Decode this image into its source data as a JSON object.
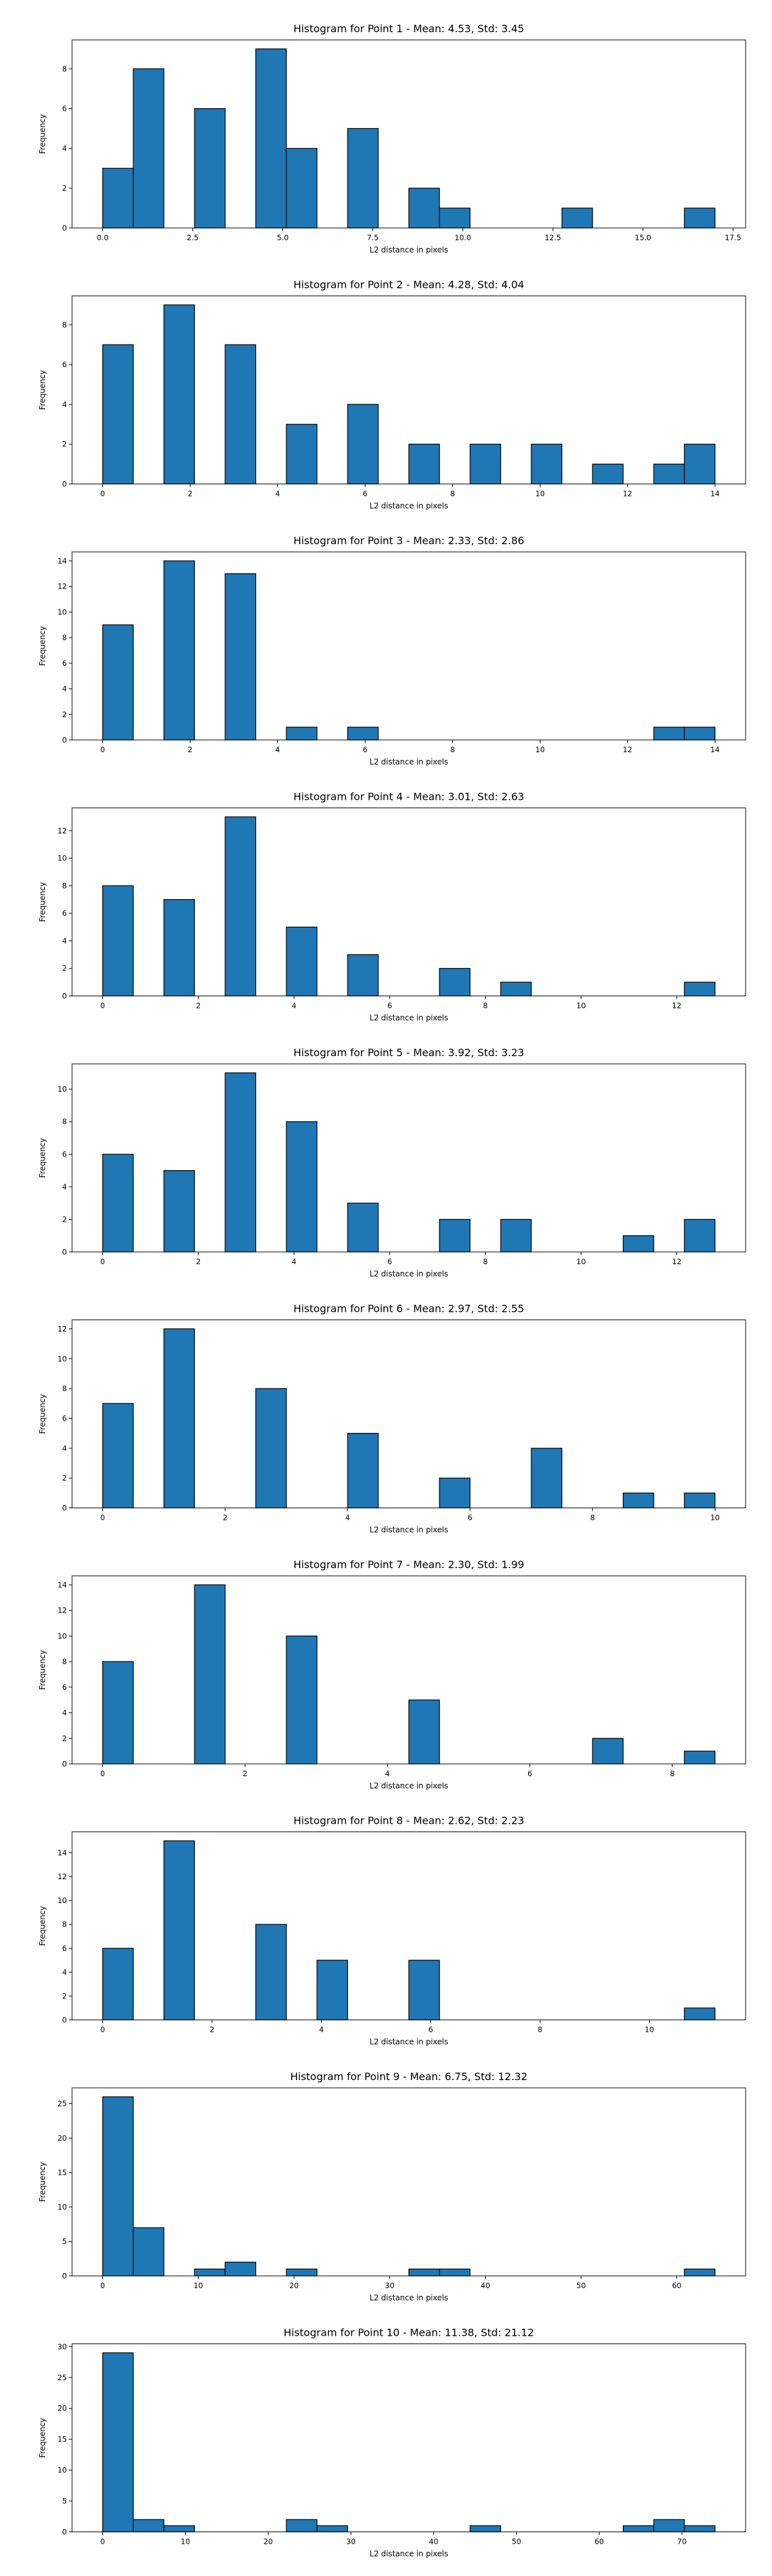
{
  "chart_data": [
    {
      "type": "bar",
      "title": "Histogram for Point 1 - Mean: 4.53, Std: 3.45",
      "xlabel": "L2 distance in pixels",
      "ylabel": "Frequency",
      "xlim": [
        -0.85,
        17.85
      ],
      "ylim": [
        0,
        9.45
      ],
      "xticks": [
        0.0,
        2.5,
        5.0,
        7.5,
        10.0,
        12.5,
        15.0,
        17.5
      ],
      "xtick_labels": [
        "0.0",
        "2.5",
        "5.0",
        "7.5",
        "10.0",
        "12.5",
        "15.0",
        "17.5"
      ],
      "yticks": [
        0,
        2,
        4,
        6,
        8
      ],
      "bin_width": 0.85,
      "bins": [
        {
          "x0": 0.0,
          "count": 3
        },
        {
          "x0": 0.85,
          "count": 8
        },
        {
          "x0": 2.55,
          "count": 6
        },
        {
          "x0": 4.25,
          "count": 9
        },
        {
          "x0": 5.1,
          "count": 4
        },
        {
          "x0": 6.8,
          "count": 5
        },
        {
          "x0": 8.5,
          "count": 2
        },
        {
          "x0": 9.35,
          "count": 1
        },
        {
          "x0": 12.75,
          "count": 1
        },
        {
          "x0": 16.15,
          "count": 1
        }
      ]
    },
    {
      "type": "bar",
      "title": "Histogram for Point 2 - Mean: 4.28, Std: 4.04",
      "xlabel": "L2 distance in pixels",
      "ylabel": "Frequency",
      "xlim": [
        -0.7,
        14.7
      ],
      "ylim": [
        0,
        9.45
      ],
      "xticks": [
        0,
        2,
        4,
        6,
        8,
        10,
        12,
        14
      ],
      "xtick_labels": [
        "0",
        "2",
        "4",
        "6",
        "8",
        "10",
        "12",
        "14"
      ],
      "yticks": [
        0,
        2,
        4,
        6,
        8
      ],
      "bin_width": 0.7,
      "bins": [
        {
          "x0": 0.0,
          "count": 7
        },
        {
          "x0": 1.4,
          "count": 9
        },
        {
          "x0": 2.8,
          "count": 7
        },
        {
          "x0": 4.2,
          "count": 3
        },
        {
          "x0": 5.6,
          "count": 4
        },
        {
          "x0": 7.0,
          "count": 2
        },
        {
          "x0": 8.4,
          "count": 2
        },
        {
          "x0": 9.8,
          "count": 2
        },
        {
          "x0": 11.2,
          "count": 1
        },
        {
          "x0": 12.6,
          "count": 1
        },
        {
          "x0": 13.3,
          "count": 2
        }
      ]
    },
    {
      "type": "bar",
      "title": "Histogram for Point 3 - Mean: 2.33, Std: 2.86",
      "xlabel": "L2 distance in pixels",
      "ylabel": "Frequency",
      "xlim": [
        -0.7,
        14.7
      ],
      "ylim": [
        0,
        14.7
      ],
      "xticks": [
        0,
        2,
        4,
        6,
        8,
        10,
        12,
        14
      ],
      "xtick_labels": [
        "0",
        "2",
        "4",
        "6",
        "8",
        "10",
        "12",
        "14"
      ],
      "yticks": [
        0,
        2,
        4,
        6,
        8,
        10,
        12,
        14
      ],
      "bin_width": 0.7,
      "bins": [
        {
          "x0": 0.0,
          "count": 9
        },
        {
          "x0": 1.4,
          "count": 14
        },
        {
          "x0": 2.8,
          "count": 13
        },
        {
          "x0": 4.2,
          "count": 1
        },
        {
          "x0": 5.6,
          "count": 1
        },
        {
          "x0": 12.6,
          "count": 1
        },
        {
          "x0": 13.3,
          "count": 1
        }
      ]
    },
    {
      "type": "bar",
      "title": "Histogram for Point 4 - Mean: 3.01, Std: 2.63",
      "xlabel": "L2 distance in pixels",
      "ylabel": "Frequency",
      "xlim": [
        -0.64,
        13.44
      ],
      "ylim": [
        0,
        13.65
      ],
      "xticks": [
        0,
        2,
        4,
        6,
        8,
        10,
        12
      ],
      "xtick_labels": [
        "0",
        "2",
        "4",
        "6",
        "8",
        "10",
        "12"
      ],
      "yticks": [
        0,
        2,
        4,
        6,
        8,
        10,
        12
      ],
      "bin_width": 0.64,
      "bins": [
        {
          "x0": 0.0,
          "count": 8
        },
        {
          "x0": 1.28,
          "count": 7
        },
        {
          "x0": 2.56,
          "count": 13
        },
        {
          "x0": 3.84,
          "count": 5
        },
        {
          "x0": 5.12,
          "count": 3
        },
        {
          "x0": 7.04,
          "count": 2
        },
        {
          "x0": 8.32,
          "count": 1
        },
        {
          "x0": 12.16,
          "count": 1
        }
      ]
    },
    {
      "type": "bar",
      "title": "Histogram for Point 5 - Mean: 3.92, Std: 3.23",
      "xlabel": "L2 distance in pixels",
      "ylabel": "Frequency",
      "xlim": [
        -0.64,
        13.44
      ],
      "ylim": [
        0,
        11.55
      ],
      "xticks": [
        0,
        2,
        4,
        6,
        8,
        10,
        12
      ],
      "xtick_labels": [
        "0",
        "2",
        "4",
        "6",
        "8",
        "10",
        "12"
      ],
      "yticks": [
        0,
        2,
        4,
        6,
        8,
        10
      ],
      "bin_width": 0.64,
      "bins": [
        {
          "x0": 0.0,
          "count": 6
        },
        {
          "x0": 1.28,
          "count": 5
        },
        {
          "x0": 2.56,
          "count": 11
        },
        {
          "x0": 3.84,
          "count": 8
        },
        {
          "x0": 5.12,
          "count": 3
        },
        {
          "x0": 7.04,
          "count": 2
        },
        {
          "x0": 8.32,
          "count": 2
        },
        {
          "x0": 10.88,
          "count": 1
        },
        {
          "x0": 12.16,
          "count": 2
        }
      ]
    },
    {
      "type": "bar",
      "title": "Histogram for Point 6 - Mean: 2.97, Std: 2.55",
      "xlabel": "L2 distance in pixels",
      "ylabel": "Frequency",
      "xlim": [
        -0.5,
        10.5
      ],
      "ylim": [
        0,
        12.6
      ],
      "xticks": [
        0,
        2,
        4,
        6,
        8,
        10
      ],
      "xtick_labels": [
        "0",
        "2",
        "4",
        "6",
        "8",
        "10"
      ],
      "yticks": [
        0,
        2,
        4,
        6,
        8,
        10,
        12
      ],
      "bin_width": 0.5,
      "bins": [
        {
          "x0": 0.0,
          "count": 7
        },
        {
          "x0": 1.0,
          "count": 12
        },
        {
          "x0": 2.5,
          "count": 8
        },
        {
          "x0": 4.0,
          "count": 5
        },
        {
          "x0": 5.5,
          "count": 2
        },
        {
          "x0": 7.0,
          "count": 4
        },
        {
          "x0": 8.5,
          "count": 1
        },
        {
          "x0": 9.5,
          "count": 1
        }
      ]
    },
    {
      "type": "bar",
      "title": "Histogram for Point 7 - Mean: 2.30, Std: 1.99",
      "xlabel": "L2 distance in pixels",
      "ylabel": "Frequency",
      "xlim": [
        -0.43,
        9.03
      ],
      "ylim": [
        0,
        14.7
      ],
      "xticks": [
        0,
        2,
        4,
        6,
        8
      ],
      "xtick_labels": [
        "0",
        "2",
        "4",
        "6",
        "8"
      ],
      "yticks": [
        0,
        2,
        4,
        6,
        8,
        10,
        12,
        14
      ],
      "bin_width": 0.43,
      "bins": [
        {
          "x0": 0.0,
          "count": 8
        },
        {
          "x0": 1.29,
          "count": 14
        },
        {
          "x0": 2.58,
          "count": 10
        },
        {
          "x0": 4.3,
          "count": 5
        },
        {
          "x0": 6.88,
          "count": 2
        },
        {
          "x0": 8.17,
          "count": 1
        }
      ]
    },
    {
      "type": "bar",
      "title": "Histogram for Point 8 - Mean: 2.62, Std: 2.23",
      "xlabel": "L2 distance in pixels",
      "ylabel": "Frequency",
      "xlim": [
        -0.56,
        11.76
      ],
      "ylim": [
        0,
        15.75
      ],
      "xticks": [
        0,
        2,
        4,
        6,
        8,
        10
      ],
      "xtick_labels": [
        "0",
        "2",
        "4",
        "6",
        "8",
        "10"
      ],
      "yticks": [
        0,
        2,
        4,
        6,
        8,
        10,
        12,
        14
      ],
      "bin_width": 0.56,
      "bins": [
        {
          "x0": 0.0,
          "count": 6
        },
        {
          "x0": 1.12,
          "count": 15
        },
        {
          "x0": 2.8,
          "count": 8
        },
        {
          "x0": 3.92,
          "count": 5
        },
        {
          "x0": 5.6,
          "count": 5
        },
        {
          "x0": 10.64,
          "count": 1
        }
      ]
    },
    {
      "type": "bar",
      "title": "Histogram for Point 9 - Mean: 6.75, Std: 12.32",
      "xlabel": "L2 distance in pixels",
      "ylabel": "Frequency",
      "xlim": [
        -3.2,
        67.2
      ],
      "ylim": [
        0,
        27.3
      ],
      "xticks": [
        0,
        10,
        20,
        30,
        40,
        50,
        60
      ],
      "xtick_labels": [
        "0",
        "10",
        "20",
        "30",
        "40",
        "50",
        "60"
      ],
      "yticks": [
        0,
        5,
        10,
        15,
        20,
        25
      ],
      "bin_width": 3.2,
      "bins": [
        {
          "x0": 0.0,
          "count": 26
        },
        {
          "x0": 3.2,
          "count": 7
        },
        {
          "x0": 9.6,
          "count": 1
        },
        {
          "x0": 12.8,
          "count": 2
        },
        {
          "x0": 19.2,
          "count": 1
        },
        {
          "x0": 32.0,
          "count": 1
        },
        {
          "x0": 35.2,
          "count": 1
        },
        {
          "x0": 60.8,
          "count": 1
        }
      ]
    },
    {
      "type": "bar",
      "title": "Histogram for Point 10 - Mean: 11.38, Std: 21.12",
      "xlabel": "L2 distance in pixels",
      "ylabel": "Frequency",
      "xlim": [
        -3.7,
        77.7
      ],
      "ylim": [
        0,
        30.45
      ],
      "xticks": [
        0,
        10,
        20,
        30,
        40,
        50,
        60,
        70
      ],
      "xtick_labels": [
        "0",
        "10",
        "20",
        "30",
        "40",
        "50",
        "60",
        "70"
      ],
      "yticks": [
        0,
        5,
        10,
        15,
        20,
        25,
        30
      ],
      "bin_width": 3.7,
      "bins": [
        {
          "x0": 0.0,
          "count": 29
        },
        {
          "x0": 3.7,
          "count": 2
        },
        {
          "x0": 7.4,
          "count": 1
        },
        {
          "x0": 22.2,
          "count": 2
        },
        {
          "x0": 25.9,
          "count": 1
        },
        {
          "x0": 44.4,
          "count": 1
        },
        {
          "x0": 62.9,
          "count": 1
        },
        {
          "x0": 66.6,
          "count": 2
        },
        {
          "x0": 70.3,
          "count": 1
        }
      ]
    }
  ],
  "colors": {
    "bar_fill": "#1f77b4",
    "bar_edge": "#000000",
    "axis": "#000000",
    "background": "#ffffff"
  }
}
